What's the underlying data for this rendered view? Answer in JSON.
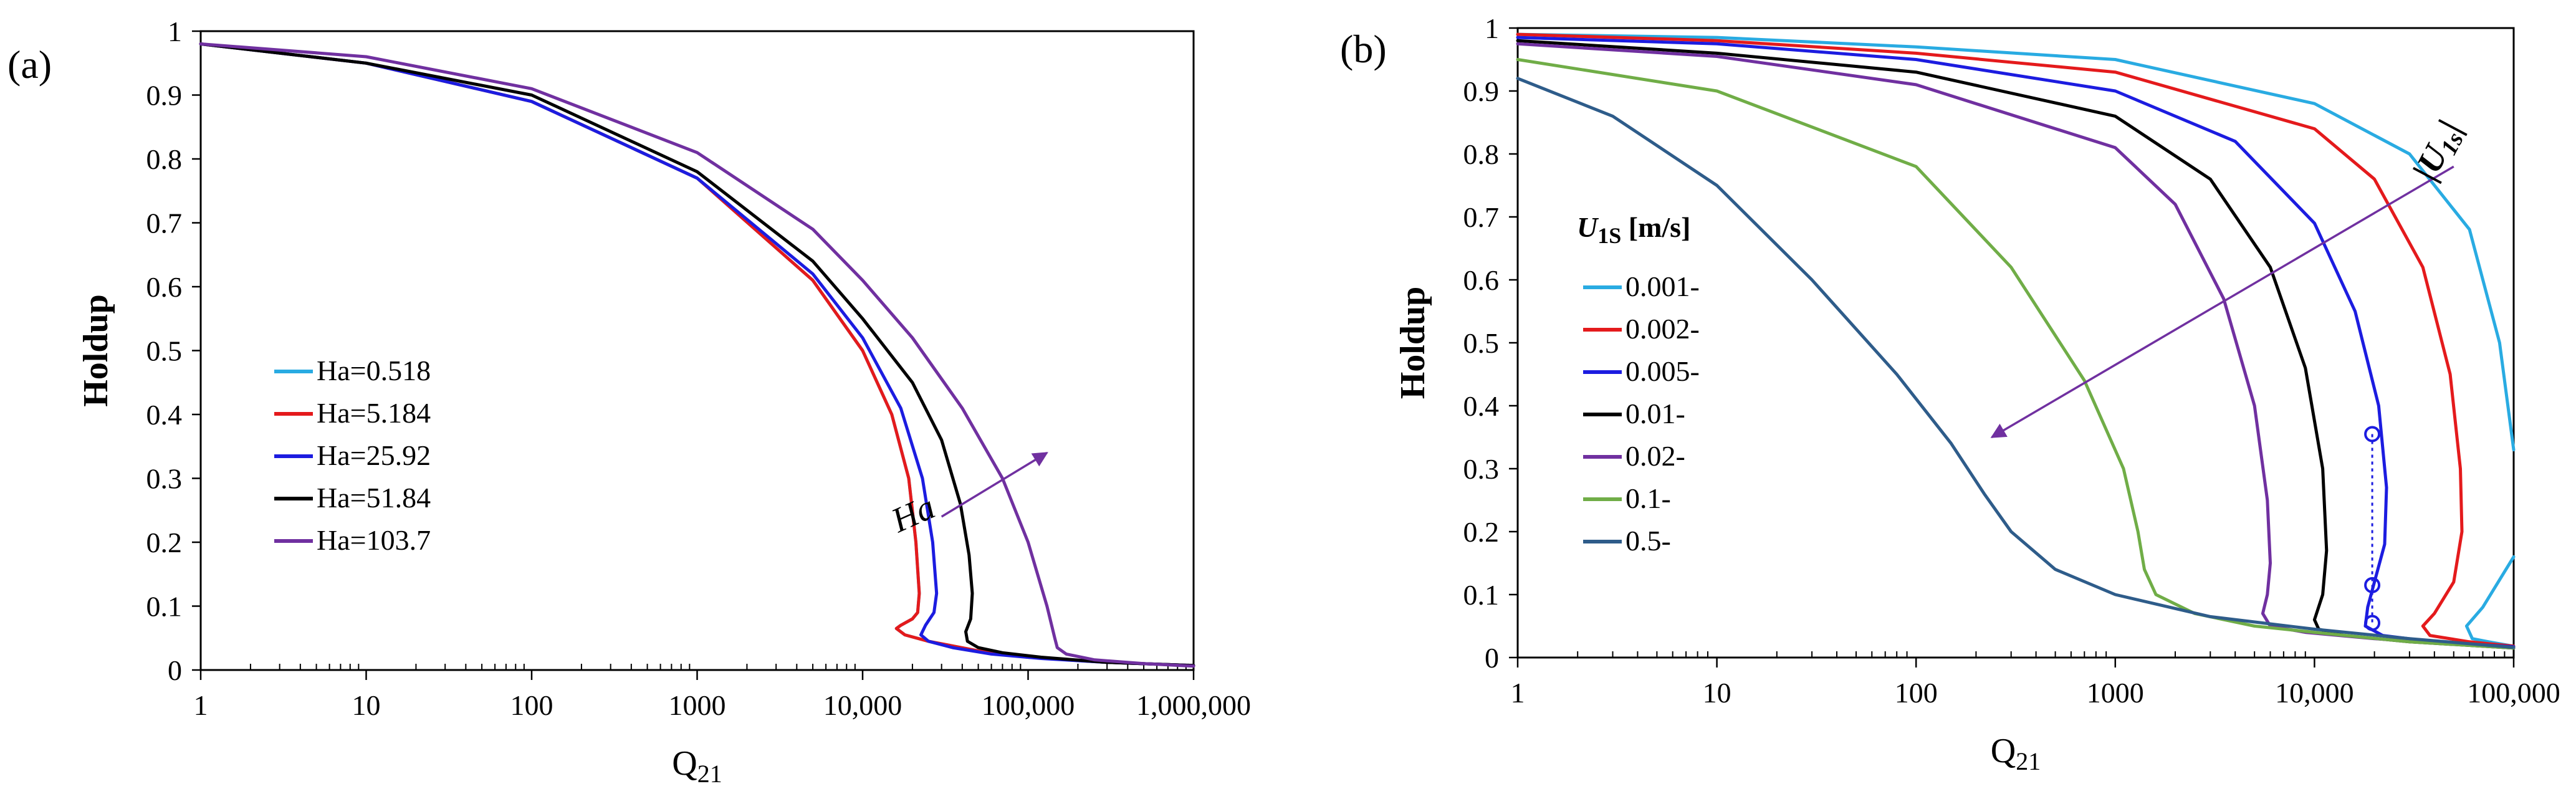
{
  "chart_data": [
    {
      "panel": "(a)",
      "type": "line",
      "xlabel": "Q21",
      "xlabel_sub": "21",
      "ylabel": "Holdup",
      "xscale": "log",
      "xlim": [
        1,
        1000000
      ],
      "ylim": [
        0,
        1
      ],
      "grid": false,
      "legend_position": "left-middle",
      "xticks": [
        1,
        10,
        100,
        1000,
        10000,
        100000,
        1000000
      ],
      "xtick_labels": [
        "1",
        "10",
        "100",
        "1000",
        "10,000",
        "100,000",
        "1,000,000"
      ],
      "yticks": [
        0,
        0.1,
        0.2,
        0.3,
        0.4,
        0.5,
        0.6,
        0.7,
        0.8,
        0.9,
        1
      ],
      "ytick_labels": [
        "0",
        "0.1",
        "0.2",
        "0.3",
        "0.4",
        "0.5",
        "0.6",
        "0.7",
        "0.8",
        "0.9",
        "1"
      ],
      "annotation": {
        "text": "Ha",
        "from": [
          30000,
          0.24
        ],
        "to": [
          130000,
          0.34
        ]
      },
      "series": [
        {
          "name": "Ha=0.518",
          "color": "#29abe2",
          "x": [
            1,
            10,
            100,
            1000,
            5000,
            10000,
            15000,
            19000,
            21000,
            22000,
            21500,
            20000,
            17000,
            16000,
            18000,
            25000,
            50000,
            100000,
            300000,
            1000000
          ],
          "y": [
            0.98,
            0.95,
            0.89,
            0.77,
            0.61,
            0.5,
            0.4,
            0.3,
            0.2,
            0.12,
            0.09,
            0.08,
            0.07,
            0.065,
            0.055,
            0.045,
            0.03,
            0.02,
            0.012,
            0.007
          ]
        },
        {
          "name": "Ha=5.184",
          "color": "#e41a1c",
          "x": [
            1,
            10,
            100,
            1000,
            5000,
            10000,
            15000,
            19000,
            21000,
            22000,
            21500,
            20000,
            17000,
            16000,
            18000,
            25000,
            50000,
            100000,
            300000,
            1000000
          ],
          "y": [
            0.98,
            0.95,
            0.89,
            0.77,
            0.61,
            0.5,
            0.4,
            0.3,
            0.2,
            0.12,
            0.09,
            0.08,
            0.07,
            0.065,
            0.055,
            0.045,
            0.03,
            0.02,
            0.012,
            0.007
          ]
        },
        {
          "name": "Ha=25.92",
          "color": "#1c1ce0",
          "x": [
            1,
            10,
            100,
            1000,
            5000,
            10000,
            17000,
            23000,
            26500,
            28000,
            27000,
            24000,
            22500,
            25000,
            35000,
            60000,
            120000,
            300000,
            1000000
          ],
          "y": [
            0.98,
            0.95,
            0.89,
            0.77,
            0.62,
            0.52,
            0.41,
            0.3,
            0.2,
            0.12,
            0.09,
            0.07,
            0.055,
            0.045,
            0.035,
            0.025,
            0.018,
            0.012,
            0.007
          ]
        },
        {
          "name": "Ha=51.84",
          "color": "#000000",
          "x": [
            1,
            10,
            100,
            1000,
            5000,
            10000,
            20000,
            30000,
            39000,
            44000,
            46000,
            45000,
            42000,
            43000,
            50000,
            70000,
            120000,
            300000,
            1000000
          ],
          "y": [
            0.98,
            0.95,
            0.9,
            0.78,
            0.64,
            0.55,
            0.45,
            0.36,
            0.26,
            0.18,
            0.12,
            0.08,
            0.06,
            0.045,
            0.035,
            0.027,
            0.02,
            0.012,
            0.007
          ]
        },
        {
          "name": "Ha=103.7",
          "color": "#7030a0",
          "x": [
            1,
            10,
            100,
            1000,
            5000,
            10000,
            20000,
            40000,
            70000,
            100000,
            130000,
            145000,
            150000,
            170000,
            250000,
            500000,
            1000000
          ],
          "y": [
            0.98,
            0.96,
            0.91,
            0.81,
            0.69,
            0.61,
            0.52,
            0.41,
            0.3,
            0.2,
            0.1,
            0.05,
            0.035,
            0.025,
            0.016,
            0.01,
            0.006
          ]
        }
      ]
    },
    {
      "panel": "(b)",
      "type": "line",
      "xlabel": "Q21",
      "xlabel_sub": "21",
      "ylabel": "Holdup",
      "xscale": "log",
      "xlim": [
        1,
        100000
      ],
      "ylim": [
        0,
        1
      ],
      "grid": false,
      "legend_position": "left-middle",
      "legend_title": "U1S [m/s]",
      "legend_title_main": "U",
      "legend_title_sub": "1S",
      "legend_title_rest": " [m/s]",
      "xticks": [
        1,
        10,
        100,
        1000,
        10000,
        100000
      ],
      "xtick_labels": [
        "1",
        "10",
        "100",
        "1000",
        "10,000",
        "100,000"
      ],
      "yticks": [
        0,
        0.1,
        0.2,
        0.3,
        0.4,
        0.5,
        0.6,
        0.7,
        0.8,
        0.9,
        1
      ],
      "ytick_labels": [
        "0",
        "0.1",
        "0.2",
        "0.3",
        "0.4",
        "0.5",
        "0.6",
        "0.7",
        "0.8",
        "0.9",
        "1"
      ],
      "annotation": {
        "text": "|U1s|",
        "text_main": "|U",
        "text_sub": "1s",
        "text_end": "|",
        "from": [
          50000,
          0.78
        ],
        "to": [
          240,
          0.35
        ]
      },
      "markers": {
        "color": "#1c1ce0",
        "x": [
          19500,
          19500,
          19500
        ],
        "y": [
          0.355,
          0.115,
          0.055
        ]
      },
      "series": [
        {
          "name": "0.001-",
          "color": "#29abe2",
          "x": [
            1,
            10,
            100,
            1000,
            10000,
            30000,
            60000,
            85000,
            100000,
            null,
            100000,
            70000,
            58000,
            62000,
            75000,
            100000
          ],
          "y": [
            0.99,
            0.985,
            0.97,
            0.95,
            0.88,
            0.8,
            0.68,
            0.5,
            0.33,
            null,
            0.16,
            0.08,
            0.05,
            0.03,
            0.025,
            0.018
          ]
        },
        {
          "name": "0.002-",
          "color": "#e41a1c",
          "x": [
            1,
            10,
            100,
            1000,
            10000,
            20000,
            35000,
            48000,
            54000,
            55000,
            50000,
            40000,
            35000,
            38000,
            60000,
            100000
          ],
          "y": [
            0.99,
            0.98,
            0.96,
            0.93,
            0.84,
            0.76,
            0.62,
            0.45,
            0.3,
            0.2,
            0.12,
            0.07,
            0.05,
            0.035,
            0.025,
            0.018
          ]
        },
        {
          "name": "0.005-",
          "color": "#1c1ce0",
          "x": [
            1,
            10,
            100,
            1000,
            4000,
            10000,
            16000,
            21000,
            23000,
            22500,
            20000,
            18500,
            18000,
            22000,
            40000,
            100000
          ],
          "y": [
            0.985,
            0.975,
            0.95,
            0.9,
            0.82,
            0.69,
            0.55,
            0.4,
            0.27,
            0.18,
            0.12,
            0.08,
            0.05,
            0.035,
            0.025,
            0.017
          ]
        },
        {
          "name": "0.01-",
          "color": "#000000",
          "x": [
            1,
            10,
            100,
            1000,
            3000,
            6000,
            9000,
            11000,
            11500,
            11000,
            10000,
            10500,
            14000,
            30000,
            100000
          ],
          "y": [
            0.98,
            0.96,
            0.93,
            0.86,
            0.76,
            0.62,
            0.46,
            0.3,
            0.17,
            0.1,
            0.06,
            0.045,
            0.035,
            0.025,
            0.015
          ]
        },
        {
          "name": "0.02-",
          "color": "#7030a0",
          "x": [
            1,
            10,
            100,
            1000,
            2000,
            3500,
            5000,
            5800,
            6000,
            5800,
            5500,
            6000,
            9000,
            20000,
            100000
          ],
          "y": [
            0.975,
            0.955,
            0.91,
            0.81,
            0.72,
            0.57,
            0.4,
            0.25,
            0.15,
            0.1,
            0.07,
            0.05,
            0.04,
            0.03,
            0.015
          ]
        },
        {
          "name": "0.1-",
          "color": "#70ad47",
          "x": [
            1,
            10,
            100,
            300,
            700,
            1100,
            1300,
            1400,
            1600,
            2500,
            5000,
            10000,
            30000,
            100000
          ],
          "y": [
            0.95,
            0.9,
            0.78,
            0.62,
            0.44,
            0.3,
            0.2,
            0.14,
            0.1,
            0.07,
            0.05,
            0.04,
            0.025,
            0.015
          ]
        },
        {
          "name": "0.5-",
          "color": "#2e5c8a",
          "x": [
            1,
            3,
            10,
            30,
            80,
            150,
            220,
            300,
            500,
            1000,
            3000,
            10000,
            30000,
            100000
          ],
          "y": [
            0.92,
            0.86,
            0.75,
            0.6,
            0.45,
            0.34,
            0.26,
            0.2,
            0.14,
            0.1,
            0.065,
            0.045,
            0.03,
            0.016
          ]
        }
      ]
    }
  ]
}
